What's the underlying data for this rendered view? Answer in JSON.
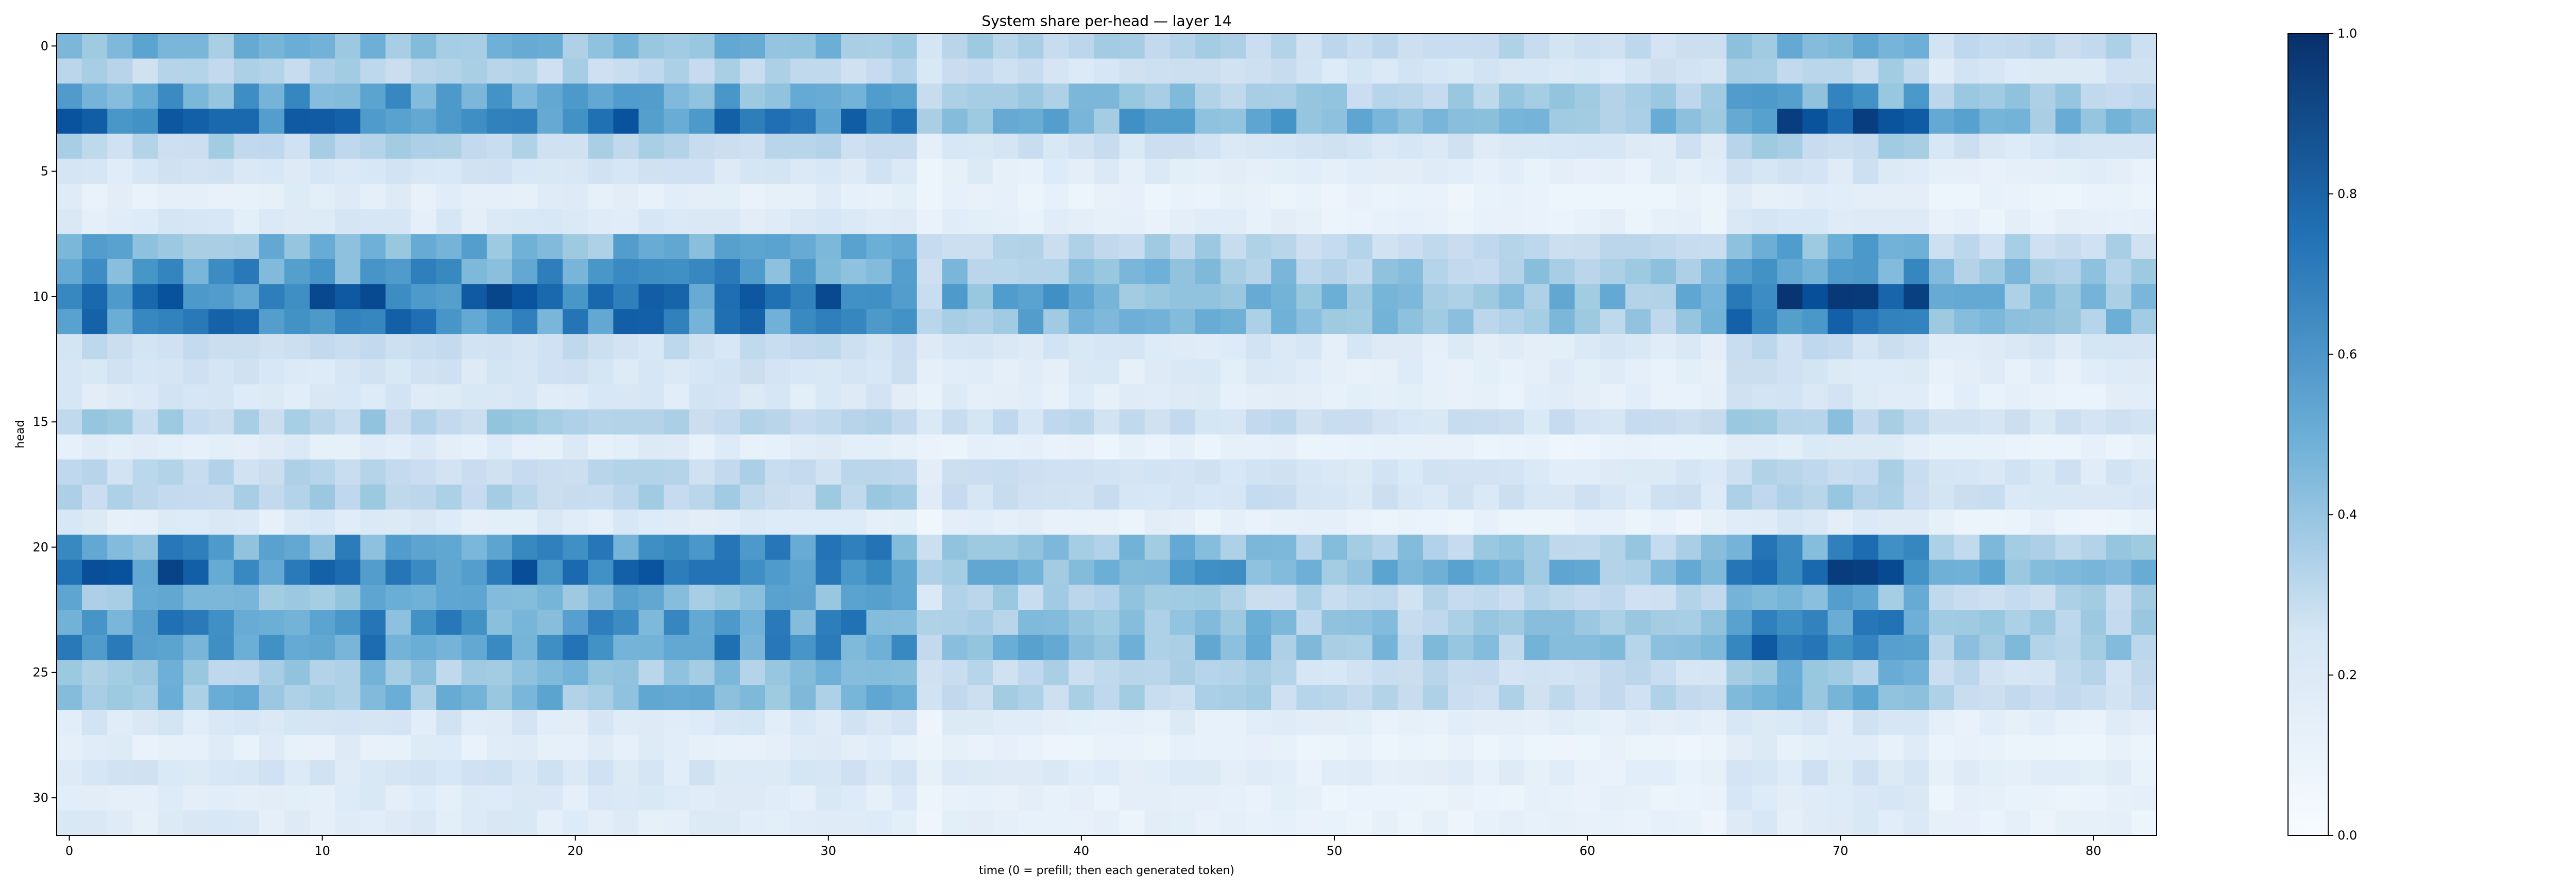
{
  "chart_data": {
    "type": "heatmap",
    "title": "System share per-head — layer 14",
    "xlabel": "time (0 = prefill; then each generated token)",
    "ylabel": "head",
    "x_count": 83,
    "y_count": 32,
    "x_ticks": [
      0,
      10,
      20,
      30,
      40,
      50,
      60,
      70,
      80
    ],
    "y_ticks": [
      0,
      5,
      10,
      15,
      20,
      25,
      30
    ],
    "colormap": "Blues",
    "colorbar": {
      "min": 0.0,
      "max": 1.0,
      "ticks": [
        "0.0",
        "0.2",
        "0.4",
        "0.6",
        "0.8",
        "1.0"
      ]
    },
    "colors": {
      "low": "#f7fbff",
      "high": "#08306b"
    },
    "row_profile": {
      "0": 0.42,
      "1": 0.28,
      "2": 0.52,
      "3": 0.7,
      "4": 0.28,
      "5": 0.16,
      "6": 0.1,
      "7": 0.13,
      "8": 0.45,
      "9": 0.58,
      "10": 0.72,
      "11": 0.64,
      "12": 0.22,
      "13": 0.17,
      "14": 0.15,
      "15": 0.32,
      "16": 0.11,
      "17": 0.26,
      "18": 0.3,
      "19": 0.12,
      "20": 0.58,
      "21": 0.72,
      "22": 0.45,
      "23": 0.58,
      "24": 0.62,
      "25": 0.38,
      "26": 0.42,
      "27": 0.15,
      "28": 0.1,
      "29": 0.16,
      "30": 0.12,
      "31": 0.12
    },
    "col_profile": {
      "0-33": 1.0,
      "34": 0.45,
      "35-48": 0.7,
      "49-65": 0.6,
      "66-73": 1.05,
      "74-82": 0.62
    },
    "notes": "Values are approximate fractions (0-1) read from the color scale; heads 3, 10, 11, 20, 21, 23, 24 carry the highest system share, especially around t=26-33 and t=68-73."
  }
}
